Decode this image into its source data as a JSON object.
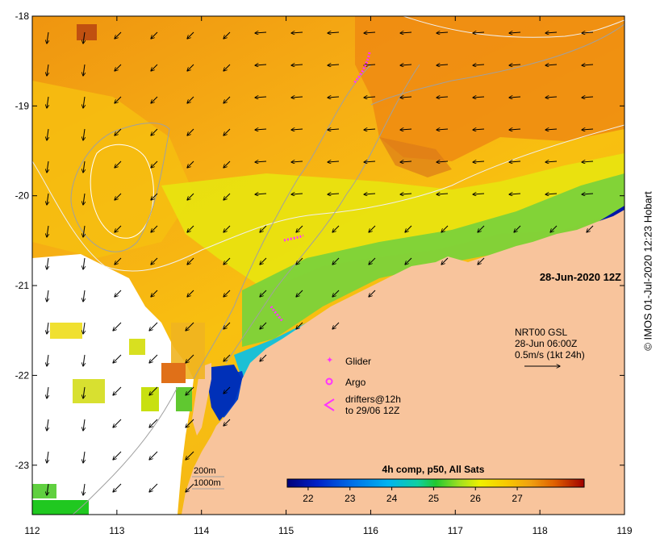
{
  "date_label": "28-Jun-2020 12Z",
  "currents": {
    "product": "NRT00 GSL",
    "time": "28-Jun 06:00Z",
    "scale": "0.5m/s (1kt 24h)"
  },
  "legend": {
    "glider": "Glider",
    "argo": "Argo",
    "drifters_line1": "drifters@12h",
    "drifters_line2": "to 29/06 12Z"
  },
  "bathymetry": {
    "label_200": "200m",
    "label_1000": "1000m"
  },
  "colorbar": {
    "title": "4h comp, p50, All Sats",
    "min": 21.5,
    "max": 28.6,
    "ticks": [
      "22",
      "23",
      "24",
      "25",
      "26",
      "27"
    ],
    "tick_values": [
      22,
      23,
      24,
      25,
      26,
      27
    ]
  },
  "axes": {
    "x_ticks": [
      "112",
      "113",
      "114",
      "115",
      "116",
      "117",
      "118",
      "119"
    ],
    "x_values": [
      112,
      113,
      114,
      115,
      116,
      117,
      118,
      119
    ],
    "y_ticks": [
      "-18",
      "-19",
      "-20",
      "-21",
      "-22",
      "-23"
    ],
    "y_values": [
      -18,
      -19,
      -20,
      -21,
      -22,
      -23
    ],
    "lon_range": [
      112,
      119
    ],
    "lat_range": [
      -23.55,
      -18
    ]
  },
  "credit": "© IMOS 01-Jul-2020 12:23 Hobart",
  "colors": {
    "land": "#f8c49c",
    "no_data": "#ffffff",
    "glider": "#ff33ff",
    "warm_sst": "#ef8f10",
    "cool_sst": "#00a0ff"
  }
}
